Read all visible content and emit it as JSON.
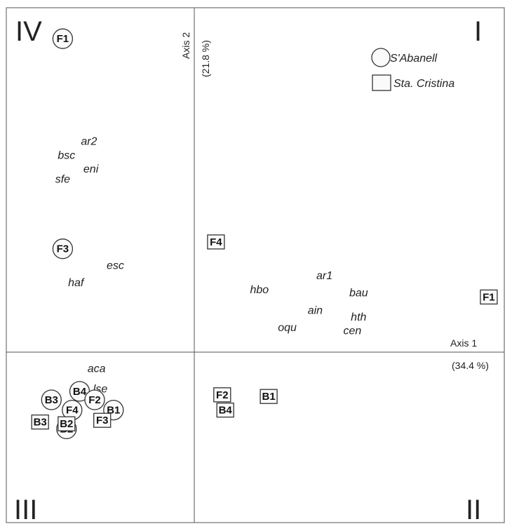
{
  "chart_data": {
    "type": "scatter",
    "quadrant_labels": {
      "I": "I",
      "II": "II",
      "III": "III",
      "IV": "IV"
    },
    "axis1": {
      "name": "Axis 1",
      "variance": "(34.4 %)"
    },
    "axis2": {
      "name": "Axis 2",
      "variance": "(21.8 %)"
    },
    "legend": {
      "placement": "top-right",
      "items": [
        {
          "marker": "circle",
          "label": "S'Abanell"
        },
        {
          "marker": "square",
          "label": "Sta. Cristina"
        }
      ]
    },
    "xlim": [
      -1,
      1
    ],
    "ylim": [
      -1,
      1
    ],
    "species": [
      {
        "label": "ar2",
        "x": -0.56,
        "y": 0.61
      },
      {
        "label": "bsc",
        "x": -0.68,
        "y": 0.57
      },
      {
        "label": "eni",
        "x": -0.55,
        "y": 0.53
      },
      {
        "label": "sfe",
        "x": -0.7,
        "y": 0.5
      },
      {
        "label": "esc",
        "x": -0.42,
        "y": 0.25
      },
      {
        "label": "haf",
        "x": -0.63,
        "y": 0.2
      },
      {
        "label": "ar1",
        "x": 0.42,
        "y": 0.22
      },
      {
        "label": "bau",
        "x": 0.53,
        "y": 0.17
      },
      {
        "label": "hbo",
        "x": 0.21,
        "y": 0.18
      },
      {
        "label": "ain",
        "x": 0.39,
        "y": 0.12
      },
      {
        "label": "hth",
        "x": 0.53,
        "y": 0.1
      },
      {
        "label": "oqu",
        "x": 0.3,
        "y": 0.07
      },
      {
        "label": "cen",
        "x": 0.51,
        "y": 0.06
      },
      {
        "label": "aca",
        "x": -0.52,
        "y": -0.1
      },
      {
        "label": "lse",
        "x": -0.5,
        "y": -0.22
      }
    ],
    "sites": [
      {
        "label": "F1",
        "marker": "circle",
        "x": -0.7,
        "y": 0.91
      },
      {
        "label": "F3",
        "marker": "circle",
        "x": -0.7,
        "y": 0.3
      },
      {
        "label": "B4",
        "marker": "circle",
        "x": -0.61,
        "y": -0.23
      },
      {
        "label": "F2",
        "marker": "circle",
        "x": -0.53,
        "y": -0.28
      },
      {
        "label": "B3",
        "marker": "circle",
        "x": -0.76,
        "y": -0.28
      },
      {
        "label": "F4",
        "marker": "circle",
        "x": -0.65,
        "y": -0.34
      },
      {
        "label": "B1",
        "marker": "circle",
        "x": -0.43,
        "y": -0.34
      },
      {
        "label": "B2",
        "marker": "circle",
        "x": -0.68,
        "y": -0.45
      },
      {
        "label": "F3",
        "marker": "square",
        "x": -0.49,
        "y": -0.4
      },
      {
        "label": "B3",
        "marker": "square",
        "x": -0.82,
        "y": -0.41
      },
      {
        "label": "B2",
        "marker": "square",
        "x": -0.68,
        "y": -0.42
      },
      {
        "label": "F4",
        "marker": "square",
        "x": 0.07,
        "y": 0.32
      },
      {
        "label": "F1",
        "marker": "square",
        "x": 0.95,
        "y": 0.16
      },
      {
        "label": "F2",
        "marker": "square",
        "x": 0.09,
        "y": -0.25
      },
      {
        "label": "B1",
        "marker": "square",
        "x": 0.24,
        "y": -0.26
      },
      {
        "label": "B4",
        "marker": "square",
        "x": 0.1,
        "y": -0.34
      }
    ]
  }
}
